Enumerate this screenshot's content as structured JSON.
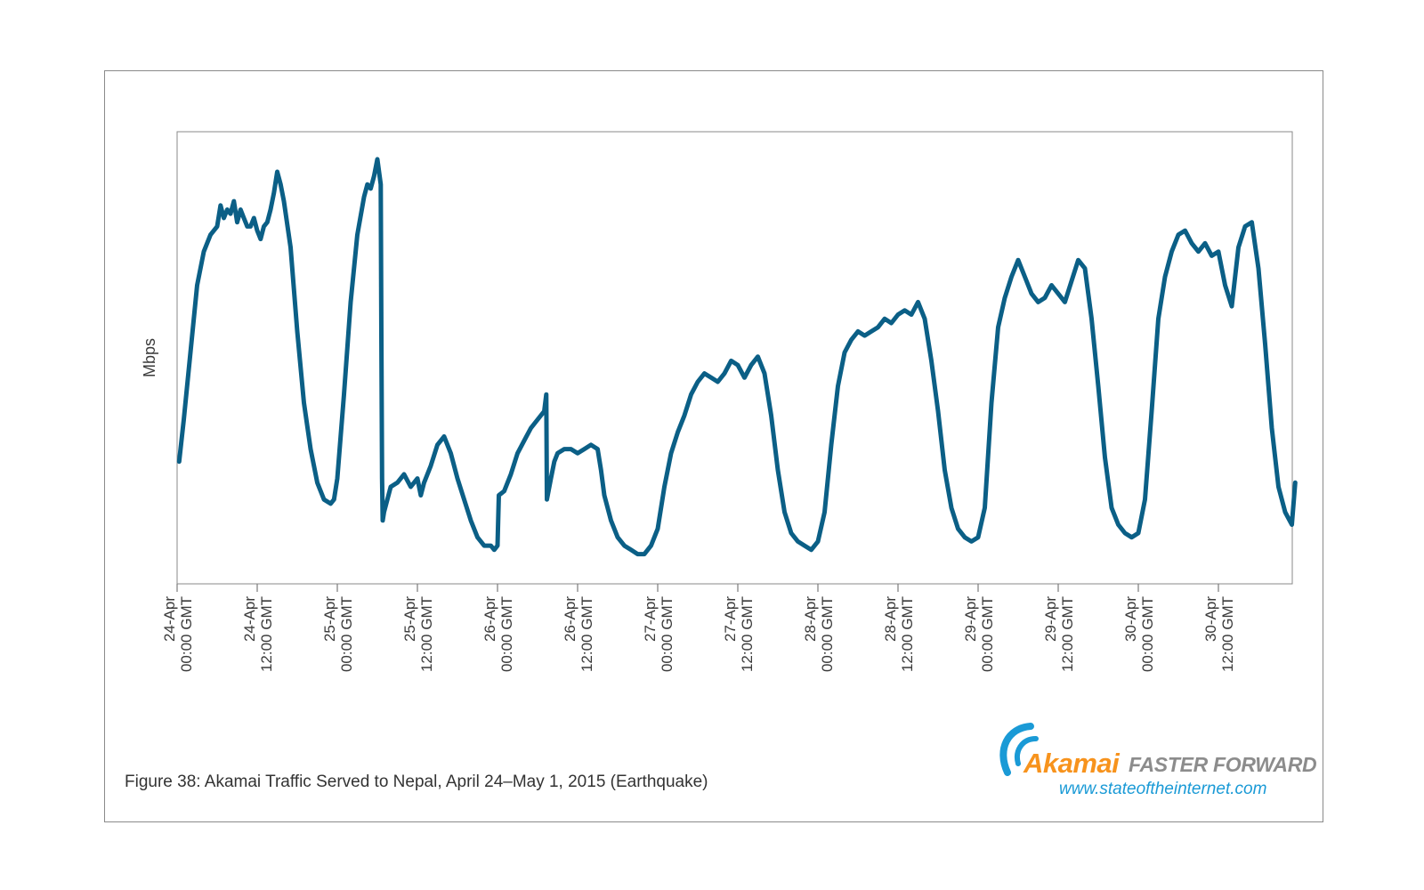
{
  "caption": "Figure 38: Akamai Traffic Served to Nepal, April 24–May 1, 2015 (Earthquake)",
  "logo": {
    "brand": "Akamai",
    "tagline": "FASTER FORWARD",
    "url": "www.stateoftheinternet.com",
    "brand_color": "#f7931d",
    "tagline_color": "#8c8c8c",
    "url_color": "#1a9ad6",
    "icon": "akamai-wave-icon"
  },
  "chart_data": {
    "type": "line",
    "title": "",
    "xlabel": "",
    "ylabel": "Mbps",
    "y_tick_labels": "none",
    "grid": false,
    "legend": "none",
    "line_color": "#0b5f86",
    "x_ticks": [
      {
        "t": 0,
        "date": "24-Apr",
        "time": "00:00 GMT"
      },
      {
        "t": 12,
        "date": "24-Apr",
        "time": "12:00 GMT"
      },
      {
        "t": 24,
        "date": "25-Apr",
        "time": "00:00 GMT"
      },
      {
        "t": 36,
        "date": "25-Apr",
        "time": "12:00 GMT"
      },
      {
        "t": 48,
        "date": "26-Apr",
        "time": "00:00 GMT"
      },
      {
        "t": 60,
        "date": "26-Apr",
        "time": "12:00 GMT"
      },
      {
        "t": 72,
        "date": "27-Apr",
        "time": "00:00 GMT"
      },
      {
        "t": 84,
        "date": "27-Apr",
        "time": "12:00 GMT"
      },
      {
        "t": 96,
        "date": "28-Apr",
        "time": "00:00 GMT"
      },
      {
        "t": 108,
        "date": "28-Apr",
        "time": "12:00 GMT"
      },
      {
        "t": 120,
        "date": "29-Apr",
        "time": "00:00 GMT"
      },
      {
        "t": 132,
        "date": "29-Apr",
        "time": "12:00 GMT"
      },
      {
        "t": 144,
        "date": "30-Apr",
        "time": "00:00 GMT"
      },
      {
        "t": 156,
        "date": "30-Apr",
        "time": "12:00 GMT"
      }
    ],
    "xlim": [
      0,
      167.5
    ],
    "ylim": [
      0,
      100
    ],
    "series": [
      {
        "name": "",
        "points": [
          [
            0.3,
            24
          ],
          [
            1,
            34
          ],
          [
            2,
            50
          ],
          [
            3,
            66
          ],
          [
            4,
            74
          ],
          [
            5,
            78
          ],
          [
            6,
            80
          ],
          [
            6.5,
            85
          ],
          [
            7,
            82
          ],
          [
            7.5,
            84
          ],
          [
            8,
            83
          ],
          [
            8.5,
            86
          ],
          [
            9,
            81
          ],
          [
            9.5,
            84
          ],
          [
            10,
            82
          ],
          [
            10.5,
            80
          ],
          [
            11,
            80
          ],
          [
            11.5,
            82
          ],
          [
            12,
            79
          ],
          [
            12.5,
            77
          ],
          [
            13,
            80
          ],
          [
            13.5,
            81
          ],
          [
            14,
            84
          ],
          [
            14.5,
            88
          ],
          [
            15,
            93
          ],
          [
            15.5,
            90
          ],
          [
            16,
            86
          ],
          [
            17,
            75
          ],
          [
            18,
            55
          ],
          [
            19,
            38
          ],
          [
            20,
            27
          ],
          [
            21,
            19
          ],
          [
            22,
            15
          ],
          [
            23,
            14
          ],
          [
            23.5,
            15
          ],
          [
            24,
            20
          ],
          [
            25,
            40
          ],
          [
            26,
            62
          ],
          [
            27,
            78
          ],
          [
            28,
            87
          ],
          [
            28.5,
            90
          ],
          [
            29,
            89
          ],
          [
            29.5,
            92
          ],
          [
            30,
            96
          ],
          [
            30.5,
            90
          ],
          [
            30.6,
            54
          ],
          [
            30.7,
            20
          ],
          [
            30.8,
            10
          ],
          [
            31,
            12
          ],
          [
            32,
            18
          ],
          [
            33,
            19
          ],
          [
            34,
            21
          ],
          [
            35,
            18
          ],
          [
            36,
            20
          ],
          [
            36.5,
            16
          ],
          [
            37,
            19
          ],
          [
            38,
            23
          ],
          [
            39,
            28
          ],
          [
            40,
            30
          ],
          [
            41,
            26
          ],
          [
            42,
            20
          ],
          [
            43,
            15
          ],
          [
            44,
            10
          ],
          [
            45,
            6
          ],
          [
            46,
            4
          ],
          [
            47,
            4
          ],
          [
            47.5,
            3
          ],
          [
            48,
            4
          ],
          [
            48.2,
            16
          ],
          [
            49,
            17
          ],
          [
            50,
            21
          ],
          [
            51,
            26
          ],
          [
            52,
            29
          ],
          [
            53,
            32
          ],
          [
            54,
            34
          ],
          [
            55,
            36
          ],
          [
            55.3,
            40
          ],
          [
            55.4,
            15
          ],
          [
            56,
            20
          ],
          [
            56.5,
            24
          ],
          [
            57,
            26
          ],
          [
            58,
            27
          ],
          [
            59,
            27
          ],
          [
            60,
            26
          ],
          [
            61,
            27
          ],
          [
            62,
            28
          ],
          [
            63,
            27
          ],
          [
            63.5,
            22
          ],
          [
            64,
            16
          ],
          [
            65,
            10
          ],
          [
            66,
            6
          ],
          [
            67,
            4
          ],
          [
            68,
            3
          ],
          [
            69,
            2
          ],
          [
            70,
            2
          ],
          [
            71,
            4
          ],
          [
            72,
            8
          ],
          [
            73,
            18
          ],
          [
            74,
            26
          ],
          [
            75,
            31
          ],
          [
            76,
            35
          ],
          [
            77,
            40
          ],
          [
            78,
            43
          ],
          [
            79,
            45
          ],
          [
            80,
            44
          ],
          [
            81,
            43
          ],
          [
            82,
            45
          ],
          [
            83,
            48
          ],
          [
            84,
            47
          ],
          [
            85,
            44
          ],
          [
            86,
            47
          ],
          [
            87,
            49
          ],
          [
            88,
            45
          ],
          [
            89,
            35
          ],
          [
            90,
            22
          ],
          [
            91,
            12
          ],
          [
            92,
            7
          ],
          [
            93,
            5
          ],
          [
            94,
            4
          ],
          [
            95,
            3
          ],
          [
            96,
            5
          ],
          [
            97,
            12
          ],
          [
            98,
            28
          ],
          [
            99,
            42
          ],
          [
            100,
            50
          ],
          [
            101,
            53
          ],
          [
            102,
            55
          ],
          [
            103,
            54
          ],
          [
            104,
            55
          ],
          [
            105,
            56
          ],
          [
            106,
            58
          ],
          [
            107,
            57
          ],
          [
            108,
            59
          ],
          [
            109,
            60
          ],
          [
            110,
            59
          ],
          [
            111,
            62
          ],
          [
            112,
            58
          ],
          [
            113,
            48
          ],
          [
            114,
            36
          ],
          [
            115,
            22
          ],
          [
            116,
            13
          ],
          [
            117,
            8
          ],
          [
            118,
            6
          ],
          [
            119,
            5
          ],
          [
            120,
            6
          ],
          [
            121,
            13
          ],
          [
            122,
            38
          ],
          [
            123,
            56
          ],
          [
            124,
            63
          ],
          [
            125,
            68
          ],
          [
            126,
            72
          ],
          [
            127,
            68
          ],
          [
            128,
            64
          ],
          [
            129,
            62
          ],
          [
            130,
            63
          ],
          [
            131,
            66
          ],
          [
            132,
            64
          ],
          [
            133,
            62
          ],
          [
            134,
            67
          ],
          [
            135,
            72
          ],
          [
            136,
            70
          ],
          [
            137,
            58
          ],
          [
            138,
            42
          ],
          [
            139,
            25
          ],
          [
            140,
            13
          ],
          [
            141,
            9
          ],
          [
            142,
            7
          ],
          [
            143,
            6
          ],
          [
            144,
            7
          ],
          [
            145,
            15
          ],
          [
            146,
            36
          ],
          [
            147,
            58
          ],
          [
            148,
            68
          ],
          [
            149,
            74
          ],
          [
            150,
            78
          ],
          [
            151,
            79
          ],
          [
            152,
            76
          ],
          [
            153,
            74
          ],
          [
            154,
            76
          ],
          [
            155,
            73
          ],
          [
            156,
            74
          ],
          [
            157,
            66
          ],
          [
            158,
            61
          ],
          [
            159,
            75
          ],
          [
            160,
            80
          ],
          [
            161,
            81
          ],
          [
            162,
            70
          ],
          [
            163,
            52
          ],
          [
            164,
            32
          ],
          [
            165,
            18
          ],
          [
            166,
            12
          ],
          [
            167,
            9
          ],
          [
            167.5,
            19
          ]
        ]
      }
    ]
  }
}
